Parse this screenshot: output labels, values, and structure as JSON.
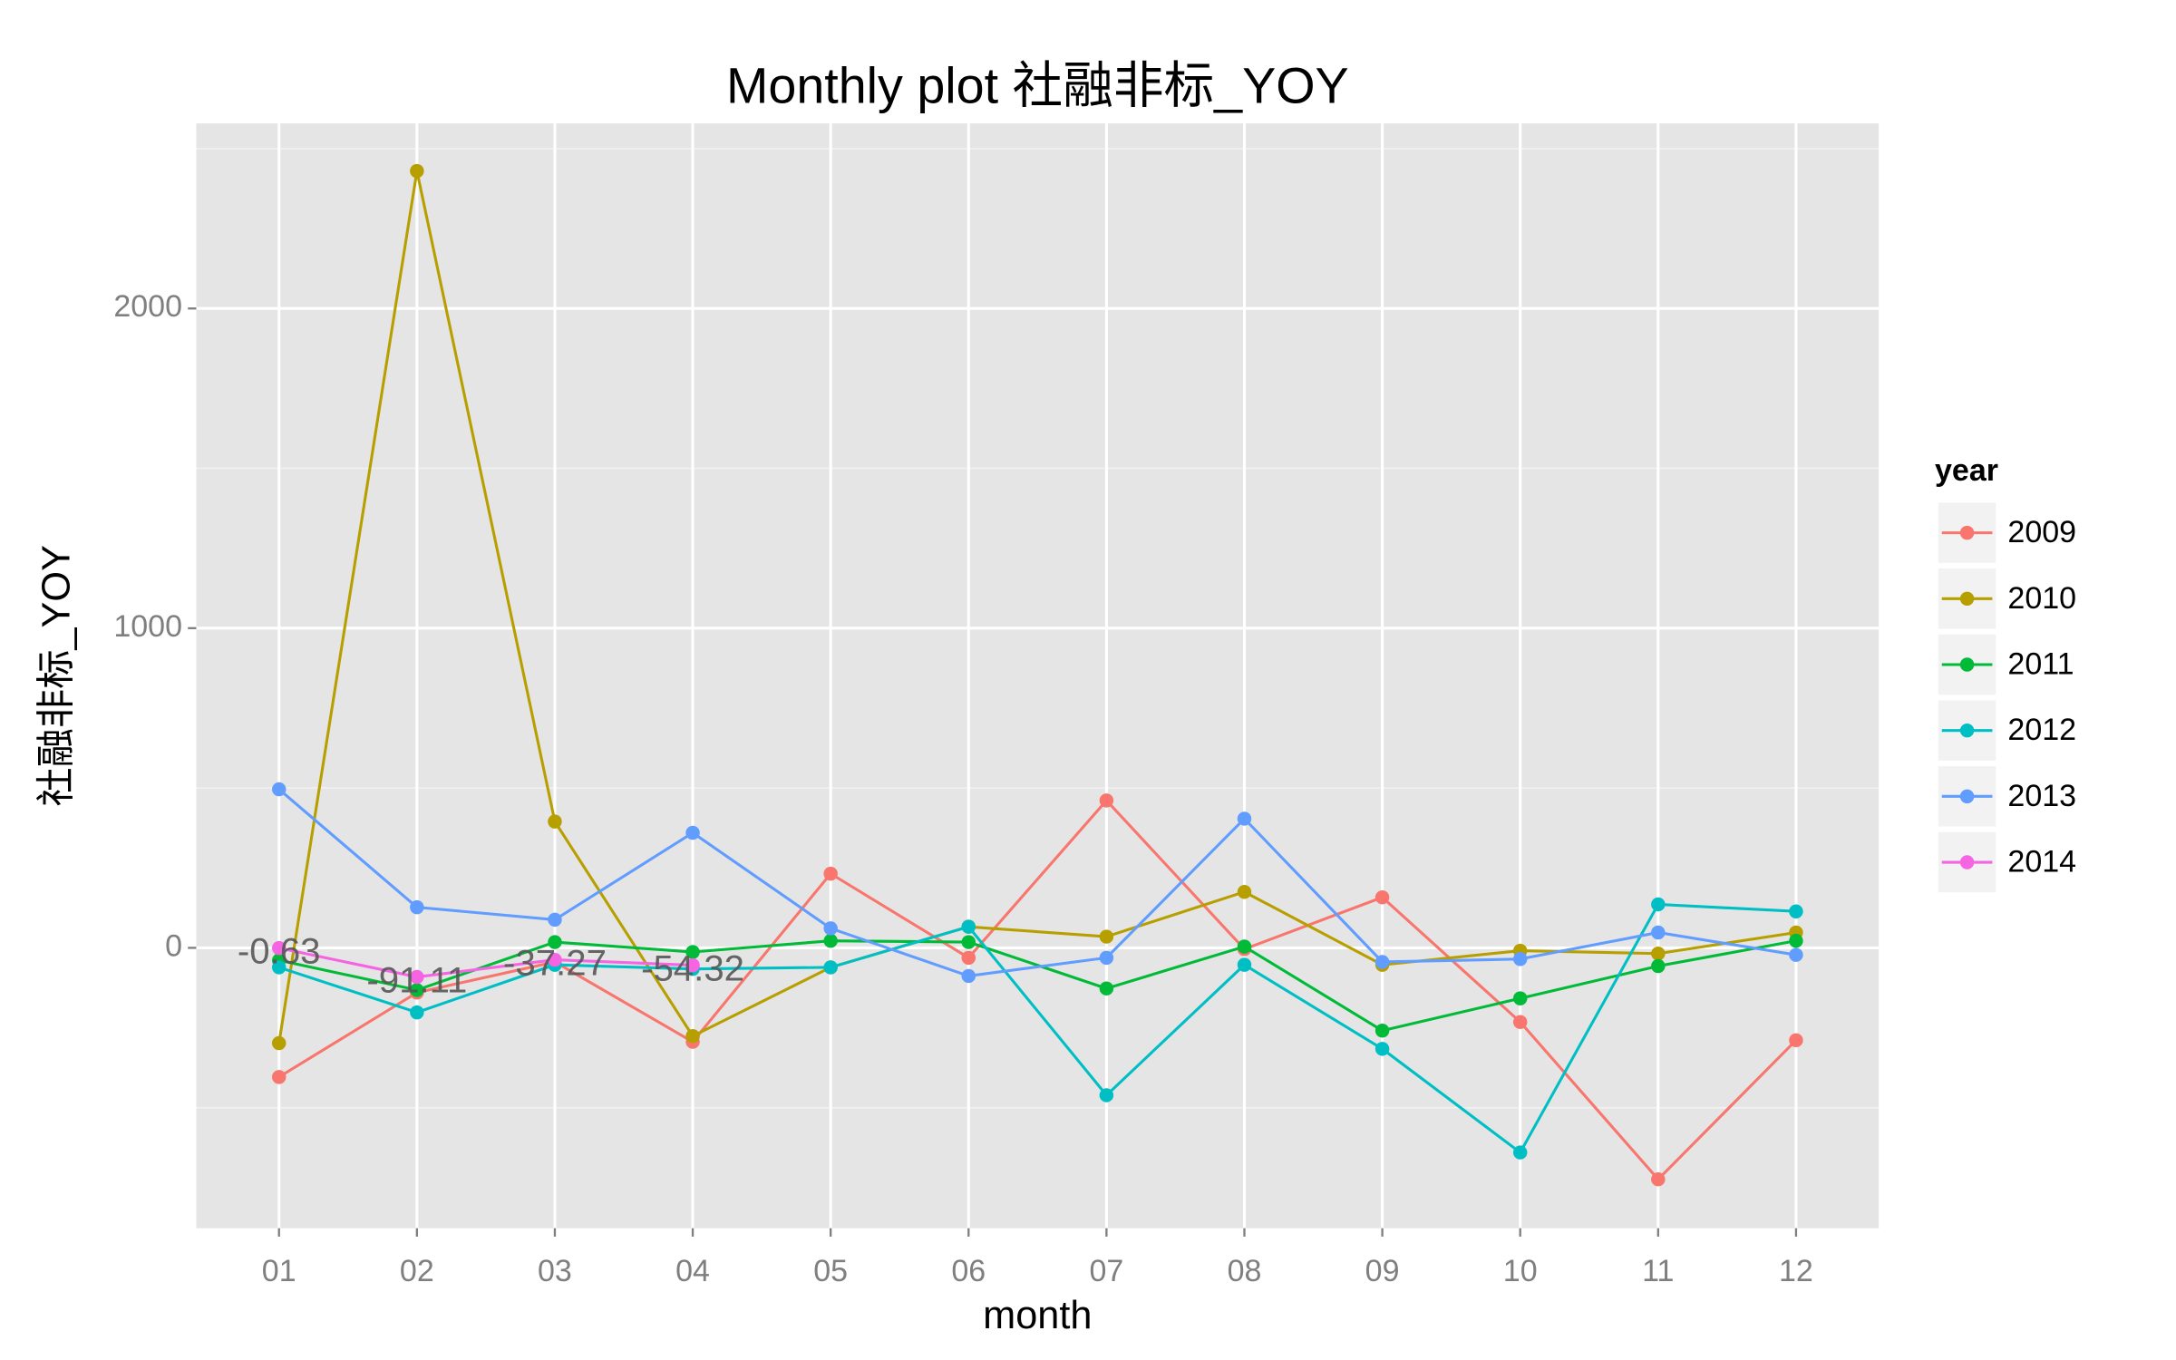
{
  "chart_data": {
    "type": "line",
    "title": "Monthly plot 社融非标_YOY",
    "x_label": "month",
    "y_label": "社融非标_YOY",
    "legend_title": "year",
    "legend_position": "right",
    "grid": true,
    "categories": [
      "01",
      "02",
      "03",
      "04",
      "05",
      "06",
      "07",
      "08",
      "09",
      "10",
      "11",
      "12"
    ],
    "ylim": [
      -877,
      2579
    ],
    "yticks": [
      0,
      1000,
      2000
    ],
    "y_minor_ticks": [
      -500,
      500,
      1500,
      2500
    ],
    "series": [
      {
        "name": "2009",
        "color": "#F8766D",
        "values": [
          -404,
          -140,
          -44,
          -294,
          232,
          -31,
          461,
          -4,
          158,
          -232,
          -724,
          -289
        ]
      },
      {
        "name": "2010",
        "color": "#B79F00",
        "values": [
          -298,
          2430,
          395,
          -276,
          -61,
          66,
          35,
          175,
          -53,
          -9,
          -18,
          48
        ]
      },
      {
        "name": "2011",
        "color": "#00BA38",
        "values": [
          -39,
          -132,
          18,
          -13,
          22,
          18,
          -127,
          4,
          -259,
          -158,
          -57,
          22
        ]
      },
      {
        "name": "2012",
        "color": "#00BFC4",
        "values": [
          -61,
          -202,
          -53,
          -66,
          -61,
          66,
          -461,
          -53,
          -316,
          -640,
          136,
          114
        ]
      },
      {
        "name": "2013",
        "color": "#619CFF",
        "values": [
          496,
          127,
          88,
          360,
          61,
          -88,
          -31,
          404,
          -44,
          -35,
          48,
          -22
        ]
      },
      {
        "name": "2014",
        "color": "#F564E3",
        "values": [
          -0.63,
          -91.11,
          -37.27,
          -54.32,
          null,
          null,
          null,
          null,
          null,
          null,
          null,
          null
        ],
        "show_value_labels": true
      }
    ]
  }
}
